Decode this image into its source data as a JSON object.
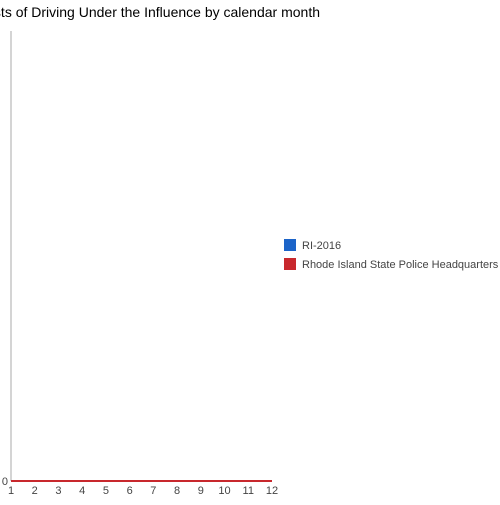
{
  "chart_data": {
    "type": "line",
    "title": "Arrests of Driving Under the Influence by calendar month",
    "x": [
      1,
      2,
      3,
      4,
      5,
      6,
      7,
      8,
      9,
      10,
      11,
      12
    ],
    "categories": [
      "1",
      "2",
      "3",
      "4",
      "5",
      "6",
      "7",
      "8",
      "9",
      "10",
      "11",
      "12"
    ],
    "y_tick_labels": [
      "0"
    ],
    "ylim": [
      0,
      1
    ],
    "grid": false,
    "legend_position": "right",
    "series": [
      {
        "name": "RI-2016",
        "color": "#1c64c8",
        "values": [
          0,
          0,
          0,
          0,
          0,
          0,
          0,
          0,
          0,
          0,
          0,
          0
        ]
      },
      {
        "name": "Rhode Island State Police Headquarters",
        "color": "#c8282d",
        "values": [
          0,
          0,
          0,
          0,
          0,
          0,
          0,
          0,
          0,
          0,
          0,
          0
        ]
      }
    ]
  }
}
